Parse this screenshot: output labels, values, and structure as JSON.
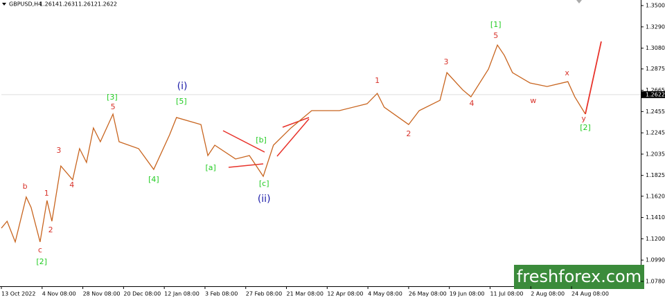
{
  "chart_data": {
    "type": "line",
    "symbol": "GBPUSD,H4",
    "ohlc": [
      1.2614,
      1.2631,
      1.2612,
      1.2622
    ],
    "current_price": 1.2622,
    "color": "#c8641e",
    "x": [
      0,
      0.14,
      0.34,
      0.61,
      0.73,
      0.95,
      1.12,
      1.24,
      1.46,
      1.75,
      1.92,
      2.09,
      2.26,
      2.43,
      2.74,
      2.89,
      3.37,
      3.74,
      4.13,
      4.3,
      4.9,
      5.07,
      5.24,
      5.75,
      6.09,
      6.43,
      6.68,
      7.11,
      7.62,
      8.3,
      8.98,
      9.23,
      9.4,
      10.0,
      10.26,
      10.77,
      10.94,
      11.33,
      11.53,
      11.96,
      12.18,
      12.35,
      12.55,
      12.98,
      13.4,
      13.91,
      14.08,
      14.34
    ],
    "values": [
      1.1305,
      1.1373,
      1.1169,
      1.1612,
      1.1509,
      1.1169,
      1.1578,
      1.1373,
      1.1918,
      1.1782,
      1.2089,
      1.1953,
      1.2293,
      1.2157,
      1.243,
      1.2157,
      1.2089,
      1.1884,
      1.2225,
      1.2396,
      1.2327,
      1.2021,
      1.2123,
      1.1987,
      1.2021,
      1.1816,
      1.2123,
      1.2293,
      1.2464,
      1.2464,
      1.2532,
      1.2634,
      1.2498,
      1.2327,
      1.2464,
      1.2566,
      1.2839,
      1.2668,
      1.26,
      1.2873,
      1.3111,
      1.3009,
      1.2839,
      1.2737,
      1.2702,
      1.275,
      1.26,
      1.243
    ],
    "projection": {
      "color": "#e8322a",
      "x": [
        14.34,
        14.73
      ],
      "values": [
        1.243,
        1.3146
      ]
    },
    "annotations": [
      {
        "text": "b",
        "x": 0.58,
        "y": 1.1714,
        "color": "#d8322a"
      },
      {
        "text": "1",
        "x": 1.11,
        "y": 1.1646,
        "color": "#d8322a"
      },
      {
        "text": "2",
        "x": 1.21,
        "y": 1.1285,
        "color": "#d8322a"
      },
      {
        "text": "c",
        "x": 0.95,
        "y": 1.1087,
        "color": "#d8322a"
      },
      {
        "text": "[2]",
        "x": 0.99,
        "y": 1.0971,
        "color": "#22cc22"
      },
      {
        "text": "3",
        "x": 1.41,
        "y": 1.2068,
        "color": "#d8322a"
      },
      {
        "text": "4",
        "x": 1.73,
        "y": 1.1728,
        "color": "#d8322a"
      },
      {
        "text": "[3]",
        "x": 2.72,
        "y": 1.2593,
        "color": "#22cc22"
      },
      {
        "text": "5",
        "x": 2.74,
        "y": 1.2498,
        "color": "#d8322a"
      },
      {
        "text": "[4]",
        "x": 3.74,
        "y": 1.1782,
        "color": "#22cc22"
      },
      {
        "text": "(i)",
        "x": 4.44,
        "y": 1.2702,
        "color": "#1a1aa8"
      },
      {
        "text": "[5]",
        "x": 4.42,
        "y": 1.2552,
        "color": "#22cc22"
      },
      {
        "text": "[a]",
        "x": 5.14,
        "y": 1.1898,
        "color": "#22cc22"
      },
      {
        "text": "[b]",
        "x": 6.38,
        "y": 1.2171,
        "color": "#22cc22"
      },
      {
        "text": "[c]",
        "x": 6.45,
        "y": 1.1741,
        "color": "#22cc22"
      },
      {
        "text": "(ii)",
        "x": 6.45,
        "y": 1.1591,
        "color": "#1a1aa8"
      },
      {
        "text": "1",
        "x": 9.23,
        "y": 1.2757,
        "color": "#d8322a"
      },
      {
        "text": "2",
        "x": 10.0,
        "y": 1.2232,
        "color": "#d8322a"
      },
      {
        "text": "3",
        "x": 10.92,
        "y": 1.2941,
        "color": "#d8322a"
      },
      {
        "text": "4",
        "x": 11.55,
        "y": 1.2532,
        "color": "#d8322a"
      },
      {
        "text": "[1]",
        "x": 12.14,
        "y": 1.3309,
        "color": "#22cc22"
      },
      {
        "text": "5",
        "x": 12.14,
        "y": 1.32,
        "color": "#d8322a"
      },
      {
        "text": "x",
        "x": 13.89,
        "y": 1.2832,
        "color": "#d8322a"
      },
      {
        "text": "w",
        "x": 13.06,
        "y": 1.2559,
        "color": "#d8322a"
      },
      {
        "text": "y",
        "x": 14.3,
        "y": 1.2382,
        "color": "#d8322a"
      },
      {
        "text": "[2]",
        "x": 14.34,
        "y": 1.2293,
        "color": "#22cc22"
      }
    ],
    "xlim": [
      0,
      15.7
    ],
    "xticks": [
      {
        "value": 0,
        "label": "13 Oct 2022"
      },
      {
        "value": 1,
        "label": "4 Nov 08:00"
      },
      {
        "value": 2,
        "label": "28 Nov 08:00"
      },
      {
        "value": 3,
        "label": "20 Dec 08:00"
      },
      {
        "value": 4,
        "label": "12 Jan 08:00"
      },
      {
        "value": 5,
        "label": "3 Feb 08:00"
      },
      {
        "value": 6,
        "label": "27 Feb 08:00"
      },
      {
        "value": 7,
        "label": "21 Mar 08:00"
      },
      {
        "value": 8,
        "label": "12 Apr 08:00"
      },
      {
        "value": 9,
        "label": "4 May 08:00"
      },
      {
        "value": 10,
        "label": "26 May 08:00"
      },
      {
        "value": 11,
        "label": "19 Jun 08:00"
      },
      {
        "value": 12,
        "label": "11 Jul 08:00"
      },
      {
        "value": 13,
        "label": "2 Aug 08:00"
      },
      {
        "value": 14,
        "label": "24 Aug 08:00"
      }
    ],
    "ylim": [
      1.0732,
      1.3555
    ],
    "yticks": [
      {
        "value": 1.35,
        "label": "1.3500"
      },
      {
        "value": 1.329,
        "label": "1.3290"
      },
      {
        "value": 1.308,
        "label": "1.3080"
      },
      {
        "value": 1.2875,
        "label": "1.2875"
      },
      {
        "value": 1.2665,
        "label": "1.2665"
      },
      {
        "value": 1.2455,
        "label": "1.2455"
      },
      {
        "value": 1.2245,
        "label": "1.2245"
      },
      {
        "value": 1.2035,
        "label": "1.2035"
      },
      {
        "value": 1.1825,
        "label": "1.1825"
      },
      {
        "value": 1.162,
        "label": "1.1620"
      },
      {
        "value": 1.141,
        "label": "1.1410"
      },
      {
        "value": 1.12,
        "label": "1.1200"
      },
      {
        "value": 1.099,
        "label": "1.0990"
      },
      {
        "value": 1.078,
        "label": "1.0780"
      }
    ],
    "watermark": "freshforex.com"
  }
}
